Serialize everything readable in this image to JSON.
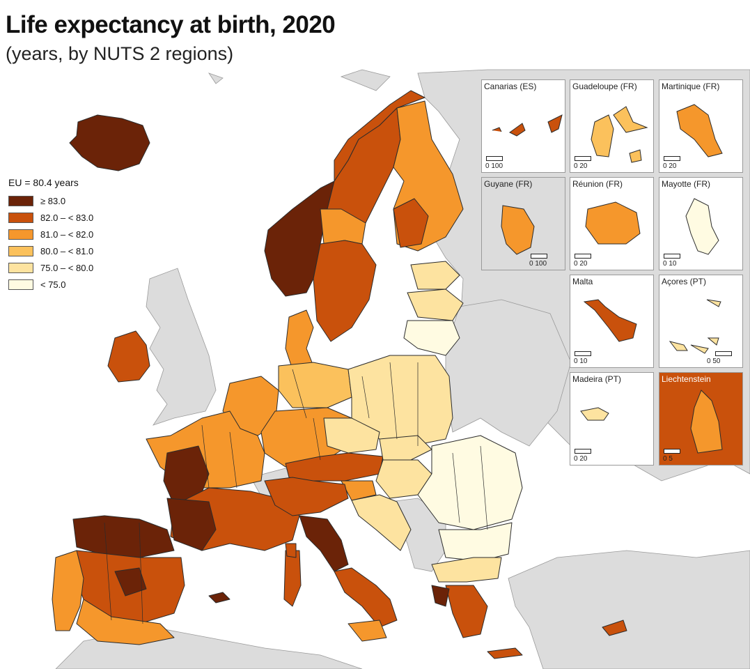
{
  "title": "Life expectancy at birth, 2020",
  "subtitle": "(years, by NUTS 2 regions)",
  "legend": {
    "header": "EU = 80.4 years",
    "classes": [
      {
        "label": "≥ 83.0",
        "color": "#6b2308"
      },
      {
        "label": "82.0 – < 83.0",
        "color": "#c9510c"
      },
      {
        "label": "81.0 – < 82.0",
        "color": "#f5972c"
      },
      {
        "label": "80.0 – < 81.0",
        "color": "#fbc15c"
      },
      {
        "label": "75.0 – < 80.0",
        "color": "#fde3a0"
      },
      {
        "label": "< 75.0",
        "color": "#fffbe2"
      }
    ]
  },
  "colors": {
    "sea": "#ffffff",
    "nondata": "#dcdcdc",
    "border": "#333333"
  },
  "insets": [
    {
      "name": "Canarias (ES)",
      "scale": "0   100"
    },
    {
      "name": "Guadeloupe (FR)",
      "scale": "0   20"
    },
    {
      "name": "Martinique (FR)",
      "scale": "0   20"
    },
    {
      "name": "Guyane (FR)",
      "scale": "0   100"
    },
    {
      "name": "Réunion (FR)",
      "scale": "0   20"
    },
    {
      "name": "Mayotte (FR)",
      "scale": "0   10"
    },
    {
      "name": "Malta",
      "scale": "0   10"
    },
    {
      "name": "Açores (PT)",
      "scale": "0      50"
    },
    {
      "name": "Madeira (PT)",
      "scale": "0   20"
    },
    {
      "name": "Liechtenstein",
      "scale": "0   5"
    }
  ]
}
